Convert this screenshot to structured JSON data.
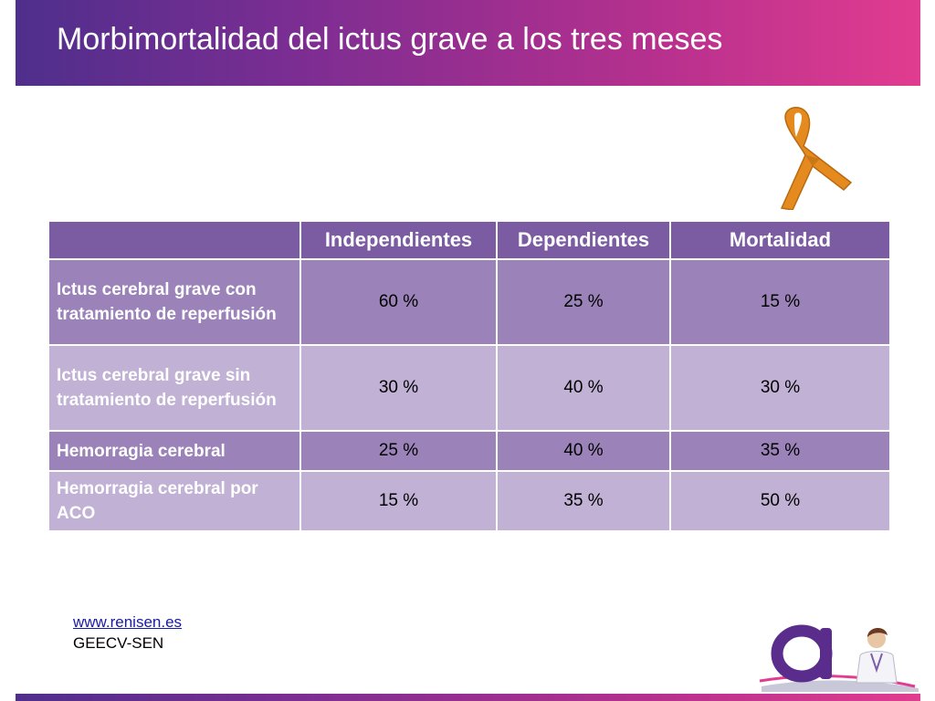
{
  "header": {
    "title": "Morbimortalidad del ictus grave a los tres meses"
  },
  "table": {
    "columns": [
      "",
      "Independientes",
      "Dependientes",
      "Mortalidad"
    ],
    "rows": [
      {
        "label": "Ictus cerebral grave con tratamiento de reperfusión",
        "independientes": "60 %",
        "dependientes": "25 %",
        "mortalidad": "15 %"
      },
      {
        "label": "Ictus cerebral grave sin tratamiento de reperfusión",
        "independientes": "30 %",
        "dependientes": "40 %",
        "mortalidad": "30 %"
      },
      {
        "label": "Hemorragia cerebral",
        "independientes": "25 %",
        "dependientes": "40 %",
        "mortalidad": "35 %"
      },
      {
        "label": "Hemorragia cerebral por ACO",
        "independientes": "15 %",
        "dependientes": "35 %",
        "mortalidad": "50 %"
      }
    ]
  },
  "footer": {
    "link": "www.renisen.es",
    "org": "GEECV-SEN"
  },
  "colors": {
    "header_gradient_start": "#4f2f8c",
    "header_gradient_end": "#e13c8f",
    "table_header": "#7b5ba2",
    "row_dark": "#9b83b9",
    "row_light": "#c0b1d5",
    "ribbon": "#e48a1e"
  },
  "icons": {
    "ribbon": "orange-awareness-ribbon-icon",
    "logo": "renisen-logo-with-doctor"
  }
}
